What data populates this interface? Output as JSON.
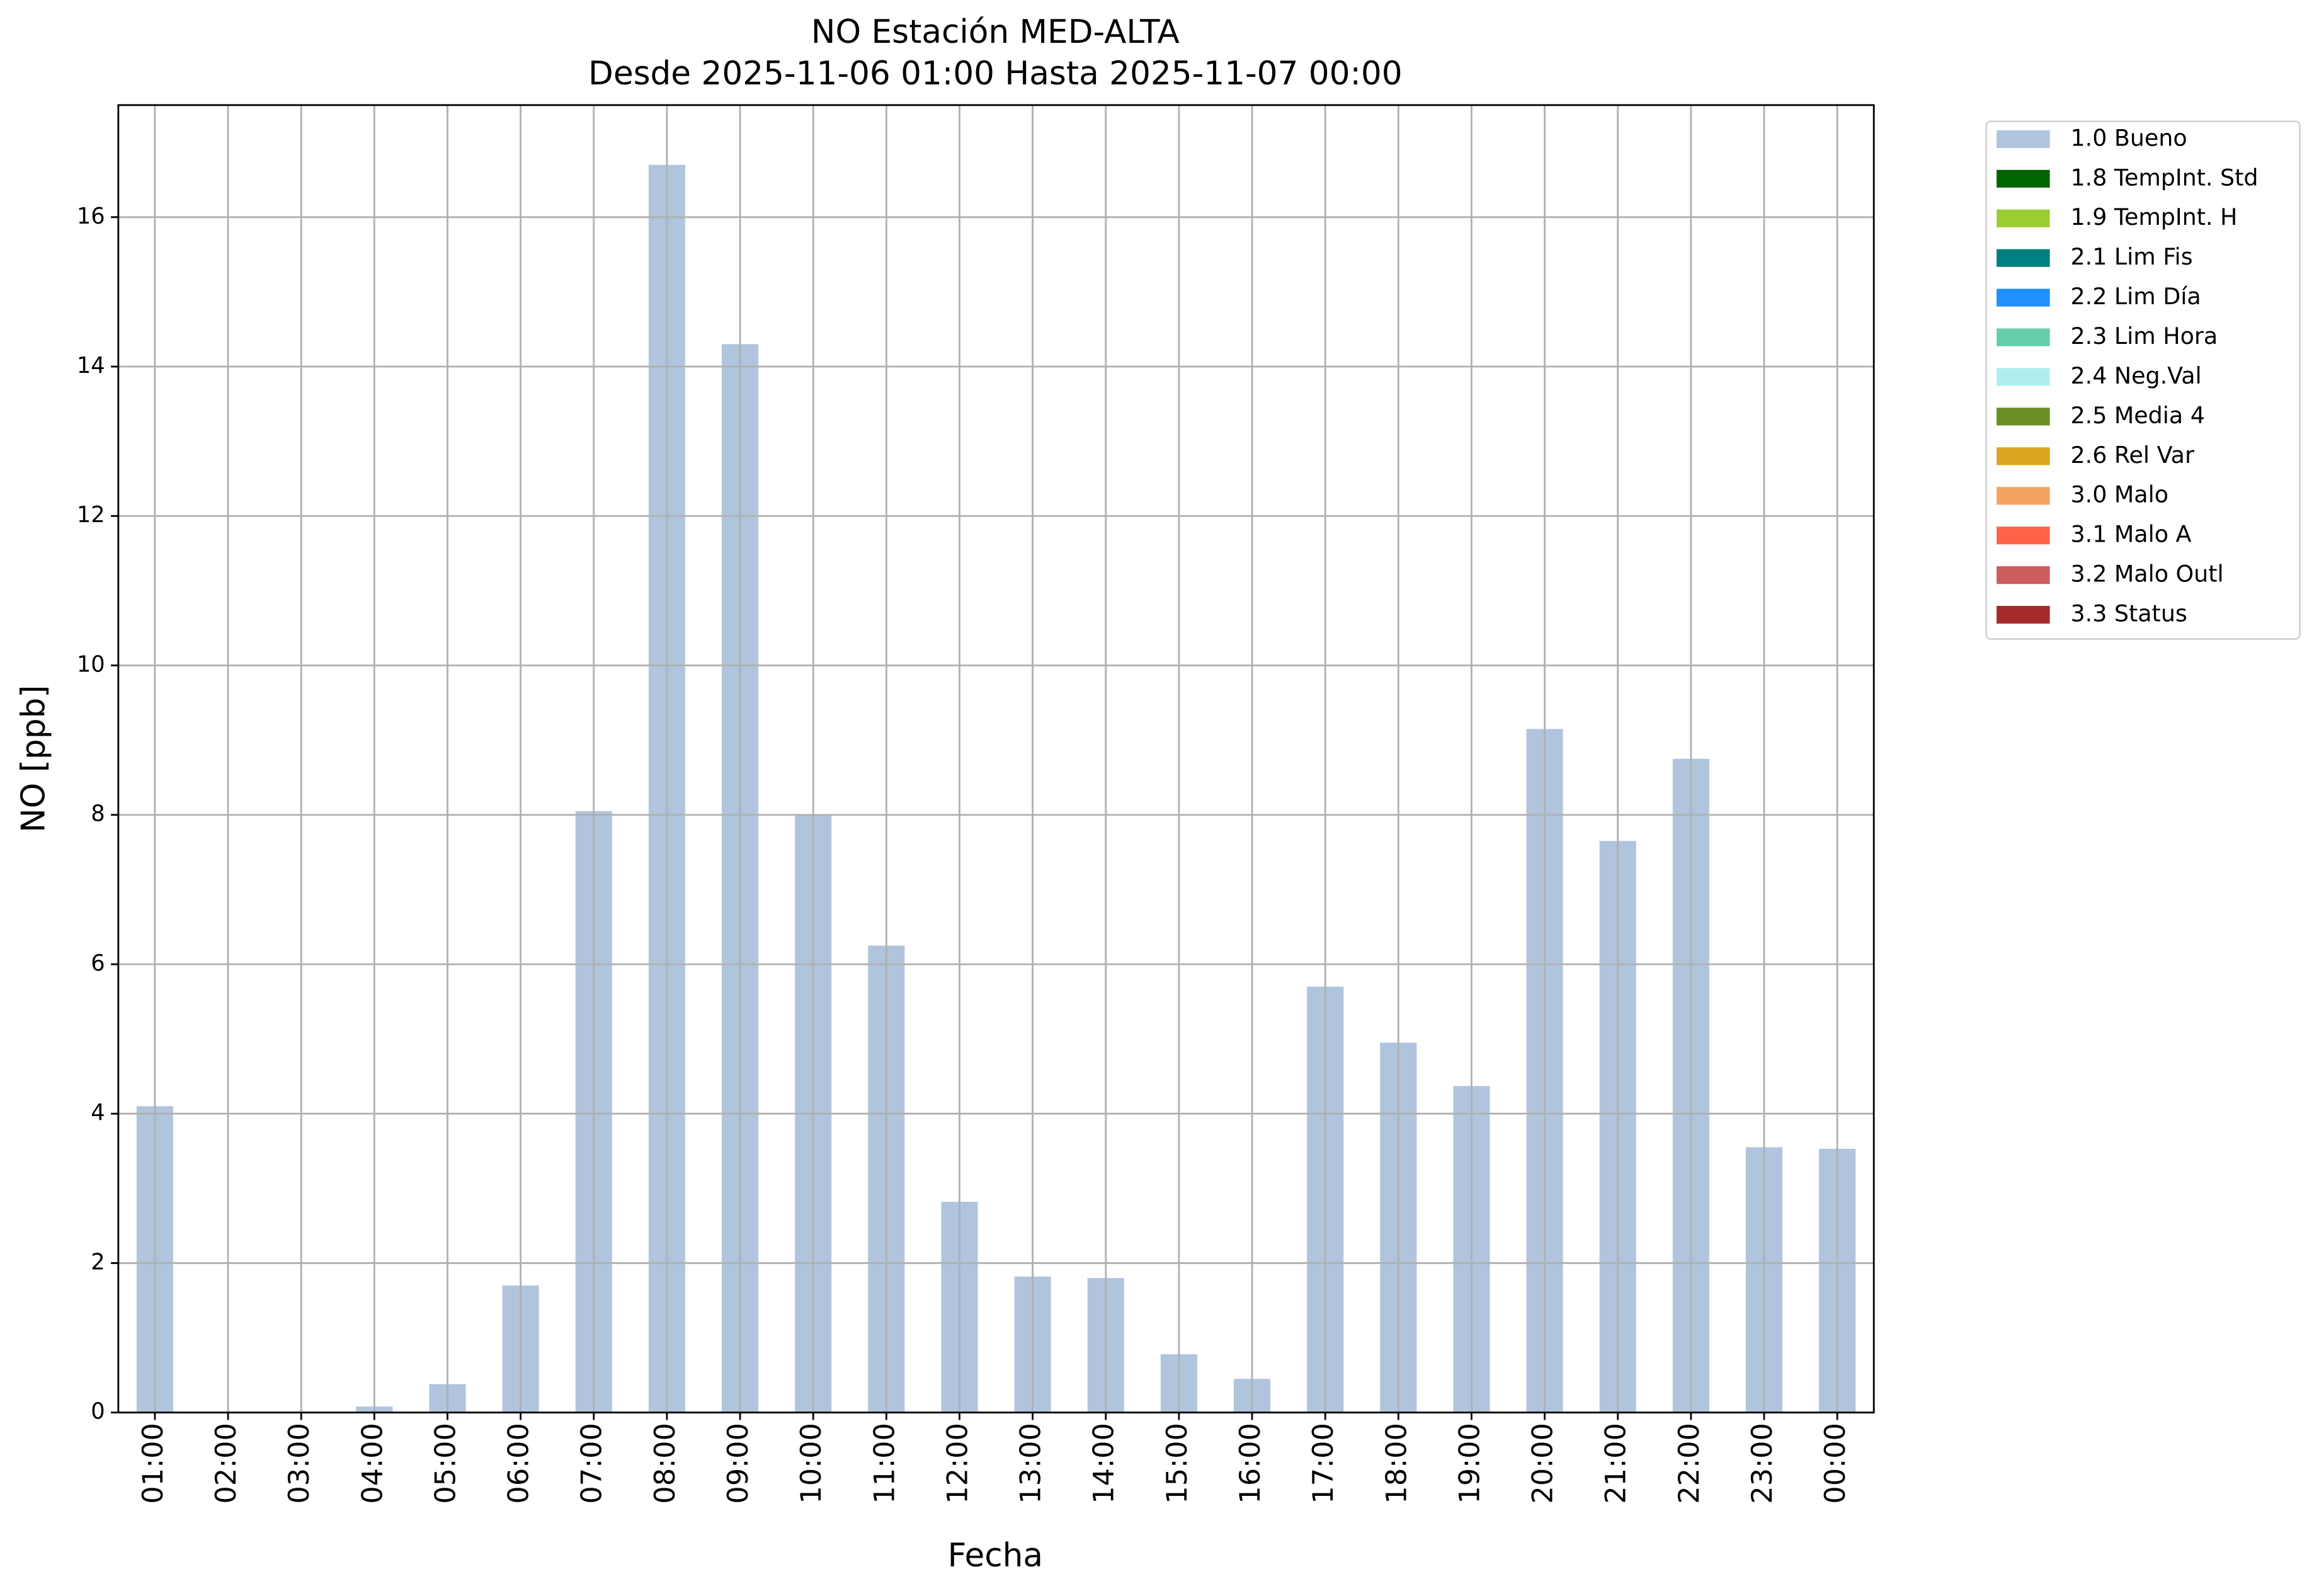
{
  "chart_data": {
    "type": "stacked_bar",
    "title": "NO Estación MED-ALTA",
    "subtitle": "Desde 2025-11-06 01:00 Hasta 2025-11-07 00:00",
    "x_label": "Fecha",
    "y_label": "NO [ppb]",
    "categories": [
      "01:00",
      "02:00",
      "03:00",
      "04:00",
      "05:00",
      "06:00",
      "07:00",
      "08:00",
      "09:00",
      "10:00",
      "11:00",
      "12:00",
      "13:00",
      "14:00",
      "15:00",
      "16:00",
      "17:00",
      "18:00",
      "19:00",
      "20:00",
      "21:00",
      "22:00",
      "23:00",
      "00:00"
    ],
    "series": [
      {
        "name": "1.0 Bueno",
        "color": "#b0c4de",
        "values": [
          4.1,
          0,
          0,
          0.08,
          0.38,
          1.7,
          8.05,
          16.7,
          14.3,
          8.0,
          6.25,
          2.82,
          1.82,
          1.8,
          0.78,
          0.45,
          5.7,
          4.95,
          4.37,
          9.15,
          7.65,
          8.75,
          3.55,
          3.53
        ]
      },
      {
        "name": "1.8 TempInt. Std",
        "color": "#006400",
        "values": [
          null,
          null,
          null,
          null,
          null,
          null,
          null,
          null,
          null,
          null,
          null,
          null,
          null,
          null,
          null,
          null,
          null,
          null,
          null,
          null,
          null,
          null,
          null,
          null
        ]
      },
      {
        "name": "1.9 TempInt. H",
        "color": "#9acd32",
        "values": [
          null,
          null,
          null,
          null,
          null,
          null,
          null,
          null,
          null,
          null,
          null,
          null,
          null,
          null,
          null,
          null,
          null,
          null,
          null,
          null,
          null,
          null,
          null,
          null
        ]
      },
      {
        "name": "2.1 Lim Fis",
        "color": "#008080",
        "values": [
          null,
          null,
          null,
          null,
          null,
          null,
          null,
          null,
          null,
          null,
          null,
          null,
          null,
          null,
          null,
          null,
          null,
          null,
          null,
          null,
          null,
          null,
          null,
          null
        ]
      },
      {
        "name": "2.2 Lim Día",
        "color": "#1e90ff",
        "values": [
          null,
          null,
          null,
          null,
          null,
          null,
          null,
          null,
          null,
          null,
          null,
          null,
          null,
          null,
          null,
          null,
          null,
          null,
          null,
          null,
          null,
          null,
          null,
          null
        ]
      },
      {
        "name": "2.3 Lim Hora",
        "color": "#66cdaa",
        "values": [
          null,
          null,
          null,
          null,
          null,
          null,
          null,
          null,
          null,
          null,
          null,
          null,
          null,
          null,
          null,
          null,
          null,
          null,
          null,
          null,
          null,
          null,
          null,
          null
        ]
      },
      {
        "name": "2.4 Neg.Val",
        "color": "#afeeee",
        "values": [
          null,
          null,
          null,
          null,
          null,
          null,
          null,
          null,
          null,
          null,
          null,
          null,
          null,
          null,
          null,
          null,
          null,
          null,
          null,
          null,
          null,
          null,
          null,
          null
        ]
      },
      {
        "name": "2.5 Media 4",
        "color": "#6b8e23",
        "values": [
          null,
          null,
          null,
          null,
          null,
          null,
          null,
          null,
          null,
          null,
          null,
          null,
          null,
          null,
          null,
          null,
          null,
          null,
          null,
          null,
          null,
          null,
          null,
          null
        ]
      },
      {
        "name": "2.6 Rel Var",
        "color": "#daa520",
        "values": [
          null,
          null,
          null,
          null,
          null,
          null,
          null,
          null,
          null,
          null,
          null,
          null,
          null,
          null,
          null,
          null,
          null,
          null,
          null,
          null,
          null,
          null,
          null,
          null
        ]
      },
      {
        "name": "3.0 Malo",
        "color": "#f4a460",
        "values": [
          null,
          null,
          null,
          null,
          null,
          null,
          null,
          null,
          null,
          null,
          null,
          null,
          null,
          null,
          null,
          null,
          null,
          null,
          null,
          null,
          null,
          null,
          null,
          null
        ]
      },
      {
        "name": "3.1 Malo A",
        "color": "#ff6347",
        "values": [
          null,
          null,
          null,
          null,
          null,
          null,
          null,
          null,
          null,
          null,
          null,
          null,
          null,
          null,
          null,
          null,
          null,
          null,
          null,
          null,
          null,
          null,
          null,
          null
        ]
      },
      {
        "name": "3.2 Malo Outl",
        "color": "#cd5c5c",
        "values": [
          null,
          null,
          null,
          null,
          null,
          null,
          null,
          null,
          null,
          null,
          null,
          null,
          null,
          null,
          null,
          null,
          null,
          null,
          null,
          null,
          null,
          null,
          null,
          null
        ]
      },
      {
        "name": "3.3 Status",
        "color": "#a52a2a",
        "values": [
          null,
          null,
          null,
          null,
          null,
          null,
          null,
          null,
          null,
          null,
          null,
          null,
          null,
          null,
          null,
          null,
          null,
          null,
          null,
          null,
          null,
          null,
          null,
          null
        ]
      }
    ],
    "ylim": [
      0,
      17.5
    ],
    "yticks": [
      0,
      2,
      4,
      6,
      8,
      10,
      12,
      14,
      16
    ],
    "grid": true,
    "legend": "outside-right"
  }
}
